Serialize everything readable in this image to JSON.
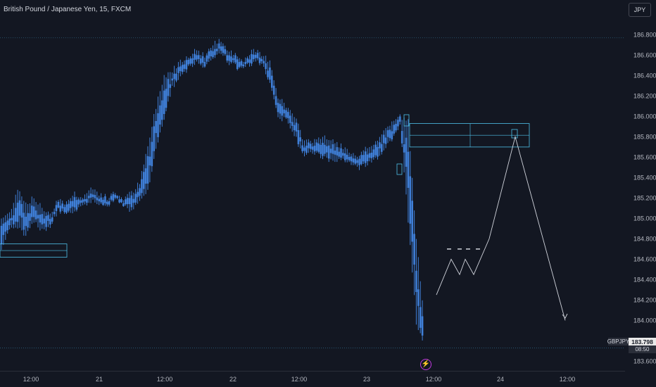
{
  "header": {
    "symbol_title": "British Pound / Japanese Yen, 15, FXCM",
    "currency_button": "JPY"
  },
  "price_badge": {
    "symbol": "GBPJPY",
    "price": "183.798",
    "countdown": "08:50"
  },
  "colors": {
    "background": "#131722",
    "candle": "#3f7fd8",
    "zone": "#4fc1e9",
    "grid_dotted": "#2a5d7a",
    "projection": "#d1d4dc",
    "event_icon": "#c038e0"
  },
  "icons": {
    "event": "lightning-icon"
  },
  "chart_data": {
    "type": "candlestick",
    "y_axis": {
      "min": 183.6,
      "max": 186.8,
      "ticks": [
        "186.800",
        "186.600",
        "186.400",
        "186.200",
        "186.000",
        "185.800",
        "185.600",
        "185.400",
        "185.200",
        "185.000",
        "184.800",
        "184.600",
        "184.400",
        "184.200",
        "184.000",
        "183.600"
      ]
    },
    "x_axis": {
      "ticks": [
        "12:00",
        "21",
        "12:00",
        "22",
        "12:00",
        "23",
        "12:00",
        "24",
        "12:00"
      ]
    },
    "last_price": 183.798,
    "high_line": 186.77,
    "low_line": 183.73,
    "zones": [
      {
        "name": "left-demand",
        "y_top": 184.75,
        "y_bottom": 184.62
      },
      {
        "name": "supply-zone",
        "y_top": 185.93,
        "y_bottom": 185.7
      }
    ],
    "path": [
      [
        185.0,
        184.72
      ],
      [
        185.05,
        184.9
      ],
      [
        185.3,
        184.95
      ],
      [
        185.15,
        184.85
      ],
      [
        185.2,
        185.0
      ],
      [
        185.1,
        184.9
      ],
      [
        185.05,
        184.95
      ],
      [
        185.2,
        185.1
      ],
      [
        185.15,
        185.05
      ],
      [
        185.25,
        185.1
      ],
      [
        185.2,
        185.15
      ],
      [
        185.3,
        185.2
      ],
      [
        185.25,
        185.15
      ],
      [
        185.2,
        185.15
      ],
      [
        185.25,
        185.2
      ],
      [
        185.2,
        185.15
      ],
      [
        185.25,
        185.1
      ],
      [
        185.35,
        185.2
      ],
      [
        185.7,
        185.3
      ],
      [
        186.1,
        185.7
      ],
      [
        186.4,
        186.0
      ],
      [
        186.45,
        186.3
      ],
      [
        186.55,
        186.4
      ],
      [
        186.6,
        186.5
      ],
      [
        186.65,
        186.55
      ],
      [
        186.6,
        186.5
      ],
      [
        186.7,
        186.6
      ],
      [
        186.75,
        186.65
      ],
      [
        186.65,
        186.55
      ],
      [
        186.6,
        186.5
      ],
      [
        186.55,
        186.5
      ],
      [
        186.65,
        186.55
      ],
      [
        186.6,
        186.55
      ],
      [
        186.55,
        186.35
      ],
      [
        186.2,
        186.0
      ],
      [
        186.1,
        186.0
      ],
      [
        186.0,
        185.85
      ],
      [
        185.8,
        185.65
      ],
      [
        185.75,
        185.65
      ],
      [
        185.8,
        185.65
      ],
      [
        185.78,
        185.6
      ],
      [
        185.75,
        185.6
      ],
      [
        185.7,
        185.6
      ],
      [
        185.62,
        185.55
      ],
      [
        185.6,
        185.52
      ],
      [
        185.7,
        185.55
      ],
      [
        185.75,
        185.6
      ],
      [
        185.85,
        185.7
      ],
      [
        185.95,
        185.8
      ],
      [
        186.0,
        185.95
      ],
      [
        185.95,
        185.0
      ],
      [
        184.8,
        184.0
      ],
      [
        184.0,
        183.8
      ]
    ],
    "projection_path": [
      [
        184.25
      ],
      [
        184.6
      ],
      [
        184.45
      ],
      [
        184.6
      ],
      [
        184.45
      ],
      [
        184.8
      ],
      [
        185.8
      ],
      [
        184.0
      ]
    ],
    "projection_stops": [
      184.7,
      184.7,
      184.7,
      184.7
    ]
  }
}
